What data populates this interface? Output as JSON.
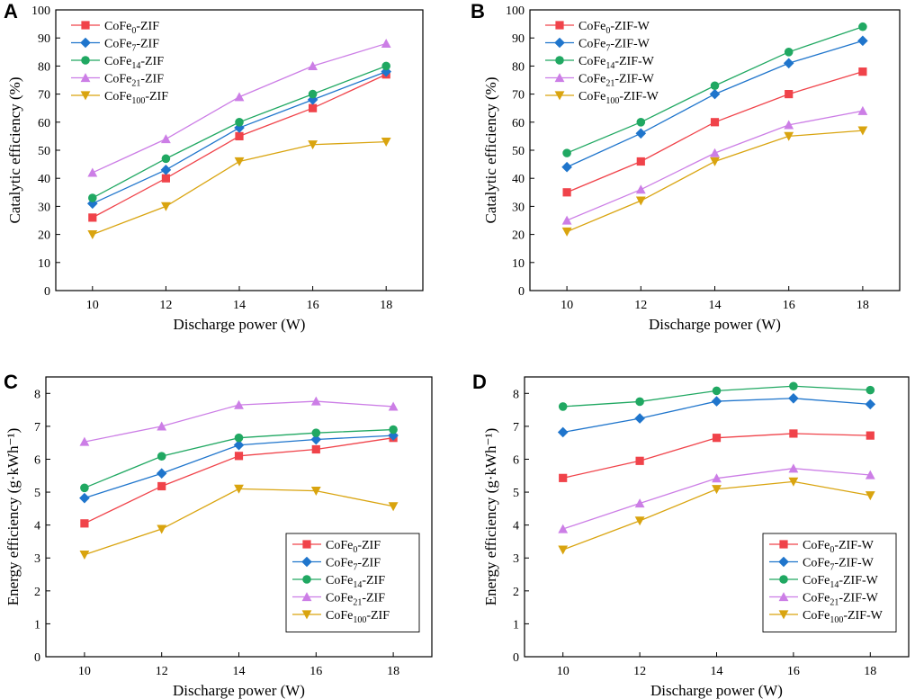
{
  "colors": {
    "CoFe0": "#f0434a",
    "CoFe7": "#1f75cc",
    "CoFe14": "#20a862",
    "CoFe21": "#cc7ee6",
    "CoFe100": "#d9a40f"
  },
  "chart_data": [
    {
      "id": "A",
      "type": "line",
      "panel_label": "A",
      "xlabel": "Discharge power (W)",
      "ylabel": "Catalytic efficiency (%)",
      "x": [
        10,
        12,
        14,
        16,
        18
      ],
      "xlim": [
        9,
        19
      ],
      "ylim": [
        0,
        100
      ],
      "yticks": [
        0,
        10,
        20,
        30,
        40,
        50,
        60,
        70,
        80,
        90,
        100
      ],
      "legend_position": "top-left",
      "series": [
        {
          "key": "CoFe0",
          "base": "CoFe",
          "sub": "0",
          "suffix": "-ZIF",
          "marker": "square",
          "values": [
            26,
            40,
            55,
            65,
            77
          ]
        },
        {
          "key": "CoFe7",
          "base": "CoFe",
          "sub": "7",
          "suffix": "-ZIF",
          "marker": "diamond",
          "values": [
            31,
            43,
            58,
            68,
            78
          ]
        },
        {
          "key": "CoFe14",
          "base": "CoFe",
          "sub": "14",
          "suffix": "-ZIF",
          "marker": "circle",
          "values": [
            33,
            47,
            60,
            70,
            80
          ]
        },
        {
          "key": "CoFe21",
          "base": "CoFe",
          "sub": "21",
          "suffix": "-ZIF",
          "marker": "triangle-up",
          "values": [
            42,
            54,
            69,
            80,
            88
          ]
        },
        {
          "key": "CoFe100",
          "base": "CoFe",
          "sub": "100",
          "suffix": "-ZIF",
          "marker": "triangle-down",
          "values": [
            20,
            30,
            46,
            52,
            53
          ]
        }
      ]
    },
    {
      "id": "B",
      "type": "line",
      "panel_label": "B",
      "xlabel": "Discharge power (W)",
      "ylabel": "Catalytic efficiency (%)",
      "x": [
        10,
        12,
        14,
        16,
        18
      ],
      "xlim": [
        9,
        19
      ],
      "ylim": [
        0,
        100
      ],
      "yticks": [
        0,
        10,
        20,
        30,
        40,
        50,
        60,
        70,
        80,
        90,
        100
      ],
      "legend_position": "top-left",
      "series": [
        {
          "key": "CoFe0",
          "base": "CoFe",
          "sub": "0",
          "suffix": "-ZIF-W",
          "marker": "square",
          "values": [
            35,
            46,
            60,
            70,
            78
          ]
        },
        {
          "key": "CoFe7",
          "base": "CoFe",
          "sub": "7",
          "suffix": "-ZIF-W",
          "marker": "diamond",
          "values": [
            44,
            56,
            70,
            81,
            89
          ]
        },
        {
          "key": "CoFe14",
          "base": "CoFe",
          "sub": "14",
          "suffix": "-ZIF-W",
          "marker": "circle",
          "values": [
            49,
            60,
            73,
            85,
            94
          ]
        },
        {
          "key": "CoFe21",
          "base": "CoFe",
          "sub": "21",
          "suffix": "-ZIF-W",
          "marker": "triangle-up",
          "values": [
            25,
            36,
            49,
            59,
            64
          ]
        },
        {
          "key": "CoFe100",
          "base": "CoFe",
          "sub": "100",
          "suffix": "-ZIF-W",
          "marker": "triangle-down",
          "values": [
            21,
            32,
            46,
            55,
            57
          ]
        }
      ]
    },
    {
      "id": "C",
      "type": "line",
      "panel_label": "C",
      "xlabel": "Discharge power (W)",
      "ylabel": "Energy efficiency (g·kWh⁻¹)",
      "x": [
        10,
        12,
        14,
        16,
        18
      ],
      "xlim": [
        9,
        19
      ],
      "ylim": [
        0,
        8.5
      ],
      "yticks": [
        0,
        1,
        2,
        3,
        4,
        5,
        6,
        7,
        8
      ],
      "legend_position": "bottom-right",
      "series": [
        {
          "key": "CoFe0",
          "base": "CoFe",
          "sub": "0",
          "suffix": "-ZIF",
          "marker": "square",
          "values": [
            4.05,
            5.18,
            6.1,
            6.3,
            6.65
          ]
        },
        {
          "key": "CoFe7",
          "base": "CoFe",
          "sub": "7",
          "suffix": "-ZIF",
          "marker": "diamond",
          "values": [
            4.82,
            5.57,
            6.43,
            6.6,
            6.72
          ]
        },
        {
          "key": "CoFe14",
          "base": "CoFe",
          "sub": "14",
          "suffix": "-ZIF",
          "marker": "circle",
          "values": [
            5.13,
            6.09,
            6.65,
            6.8,
            6.9
          ]
        },
        {
          "key": "CoFe21",
          "base": "CoFe",
          "sub": "21",
          "suffix": "-ZIF",
          "marker": "triangle-up",
          "values": [
            6.53,
            7.0,
            7.65,
            7.76,
            7.6
          ]
        },
        {
          "key": "CoFe100",
          "base": "CoFe",
          "sub": "100",
          "suffix": "-ZIF",
          "marker": "triangle-down",
          "values": [
            3.1,
            3.88,
            5.1,
            5.04,
            4.57
          ]
        }
      ]
    },
    {
      "id": "D",
      "type": "line",
      "panel_label": "D",
      "xlabel": "Discharge power (W)",
      "ylabel": "Energy efficiency (g·kWh⁻¹)",
      "x": [
        10,
        12,
        14,
        16,
        18
      ],
      "xlim": [
        9,
        19
      ],
      "ylim": [
        0,
        8.5
      ],
      "yticks": [
        0,
        1,
        2,
        3,
        4,
        5,
        6,
        7,
        8
      ],
      "legend_position": "bottom-right",
      "series": [
        {
          "key": "CoFe0",
          "base": "CoFe",
          "sub": "0",
          "suffix": "-ZIF-W",
          "marker": "square",
          "values": [
            5.43,
            5.95,
            6.65,
            6.78,
            6.72
          ]
        },
        {
          "key": "CoFe7",
          "base": "CoFe",
          "sub": "7",
          "suffix": "-ZIF-W",
          "marker": "diamond",
          "values": [
            6.82,
            7.24,
            7.76,
            7.85,
            7.67
          ]
        },
        {
          "key": "CoFe14",
          "base": "CoFe",
          "sub": "14",
          "suffix": "-ZIF-W",
          "marker": "circle",
          "values": [
            7.6,
            7.75,
            8.08,
            8.22,
            8.1
          ]
        },
        {
          "key": "CoFe21",
          "base": "CoFe",
          "sub": "21",
          "suffix": "-ZIF-W",
          "marker": "triangle-up",
          "values": [
            3.88,
            4.66,
            5.42,
            5.72,
            5.52
          ]
        },
        {
          "key": "CoFe100",
          "base": "CoFe",
          "sub": "100",
          "suffix": "-ZIF-W",
          "marker": "triangle-down",
          "values": [
            3.25,
            4.13,
            5.09,
            5.32,
            4.9
          ]
        }
      ]
    }
  ]
}
